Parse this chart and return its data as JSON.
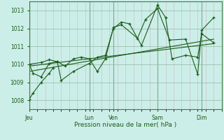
{
  "bg_color": "#cceee8",
  "grid_color_major": "#aaccbb",
  "grid_color_minor": "#ccbbcc",
  "line_color": "#1a5c1a",
  "title": "Pression niveau de la mer( hPa )",
  "ylim": [
    1007.5,
    1013.5
  ],
  "yticks": [
    1008,
    1009,
    1010,
    1011,
    1012,
    1013
  ],
  "x_day_labels": [
    "Jeu",
    "Lun",
    "Ven",
    "Sam",
    "Dim"
  ],
  "x_day_positions": [
    0.0,
    7.5,
    10.5,
    16.0,
    21.5
  ],
  "xlim": [
    0,
    24
  ],
  "series1_x": [
    0.0,
    0.5,
    1.5,
    2.5,
    3.5,
    4.0,
    5.5,
    7.5,
    8.5,
    9.5,
    10.5,
    11.5,
    12.5,
    14.0,
    16.0,
    17.0,
    17.8,
    19.5,
    21.0,
    21.5,
    23.0
  ],
  "series1_y": [
    1010.0,
    1009.5,
    1009.3,
    1010.05,
    1010.15,
    1009.1,
    1009.6,
    1010.05,
    1010.4,
    1010.5,
    1012.0,
    1012.35,
    1012.25,
    1011.05,
    1013.3,
    1012.6,
    1010.3,
    1010.5,
    1010.4,
    1011.7,
    1011.2
  ],
  "series2_x": [
    0.0,
    1.5,
    2.5,
    3.5,
    4.5,
    5.5,
    6.5,
    7.5,
    8.5,
    9.5,
    10.5,
    11.5,
    13.5,
    14.5,
    16.0,
    17.5,
    19.5,
    21.0,
    21.5,
    23.0
  ],
  "series2_y": [
    1010.0,
    1010.1,
    1010.25,
    1010.15,
    1009.9,
    1010.3,
    1010.4,
    1010.3,
    1009.6,
    1010.3,
    1012.05,
    1012.2,
    1011.45,
    1012.5,
    1013.1,
    1011.35,
    1011.4,
    1009.45,
    1011.9,
    1012.6
  ],
  "trend1_x": [
    0.0,
    23.0
  ],
  "trend1_y": [
    1009.6,
    1011.4
  ],
  "trend2_x": [
    0.0,
    23.0
  ],
  "trend2_y": [
    1009.9,
    1011.15
  ],
  "series3_x": [
    0.0,
    0.5,
    1.5,
    2.5,
    3.0
  ],
  "series3_y": [
    1008.05,
    1008.4,
    1009.0,
    1009.5,
    1009.8
  ]
}
